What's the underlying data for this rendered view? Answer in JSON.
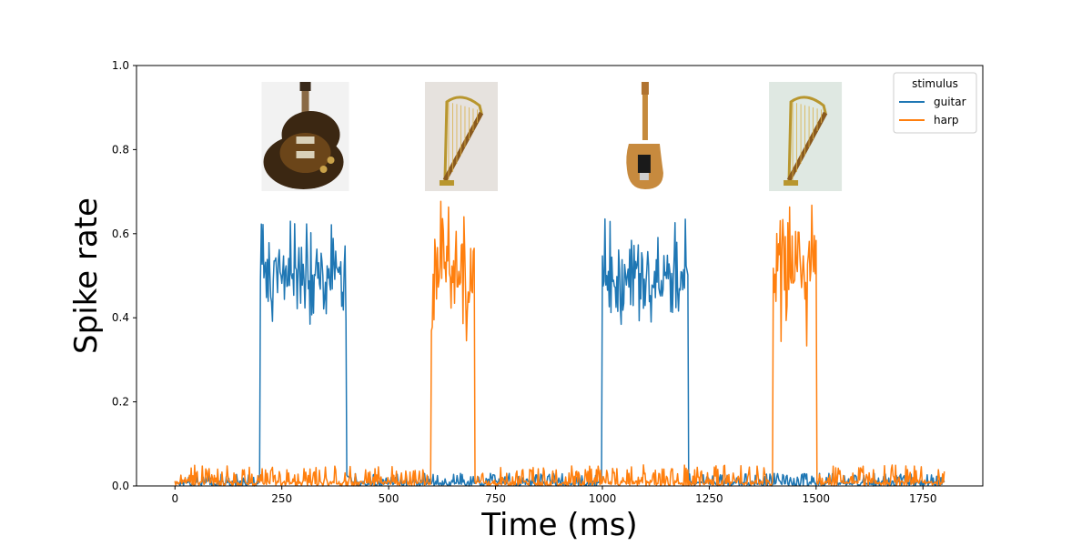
{
  "chart_data": {
    "type": "line",
    "xlabel": "Time (ms)",
    "ylabel": "Spike rate",
    "xlim": [
      -90,
      1890
    ],
    "ylim": [
      0,
      1.0
    ],
    "xticks": [
      0,
      250,
      500,
      750,
      1000,
      1250,
      1500,
      1750
    ],
    "yticks": [
      0.0,
      0.2,
      0.4,
      0.6,
      0.8,
      1.0
    ],
    "grid": false,
    "legend": {
      "title": "stimulus",
      "placement": "top-right"
    },
    "series": [
      {
        "name": "guitar",
        "color": "#1f77b4",
        "baseline_range": [
          0,
          0.03
        ],
        "active_windows": [
          [
            200,
            400
          ],
          [
            1000,
            1200
          ]
        ],
        "active_mean": 0.5,
        "active_range": [
          0.38,
          0.64
        ]
      },
      {
        "name": "harp",
        "color": "#ff7f0e",
        "baseline_range": [
          0,
          0.05
        ],
        "active_windows": [
          [
            600,
            700
          ],
          [
            1400,
            1500
          ]
        ],
        "active_mean": 0.52,
        "active_range": [
          0.33,
          0.68
        ]
      }
    ],
    "x_domain": [
      0,
      1800
    ],
    "image_annotations": [
      {
        "icon": "electric-guitar-les-paul-icon",
        "x_center": 305
      },
      {
        "icon": "harp-icon",
        "x_center": 670
      },
      {
        "icon": "electric-guitar-telecaster-icon",
        "x_center": 1100
      },
      {
        "icon": "harp-icon",
        "x_center": 1475
      }
    ]
  }
}
